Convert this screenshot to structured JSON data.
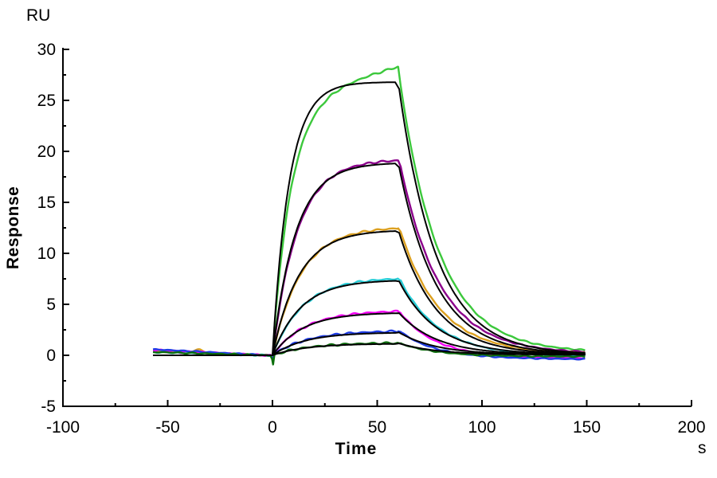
{
  "chart_data": {
    "type": "line",
    "title": "",
    "description": "SPR sensorgram: seven concentration curves (colored raw data) with black kinetic fit overlays",
    "x_axis": {
      "label": "Time",
      "unit": "s",
      "range": [
        -100,
        200
      ],
      "major_ticks": [
        -100,
        -50,
        0,
        50,
        100,
        150,
        200
      ],
      "minor_ticks": [
        -75,
        -25,
        25,
        75,
        125,
        175
      ]
    },
    "y_axis": {
      "label": "Response",
      "unit": "RU",
      "range": [
        -5,
        30
      ],
      "major_ticks": [
        -5,
        0,
        5,
        10,
        15,
        20,
        25,
        30
      ],
      "minor_ticks": [
        -2.5,
        2.5,
        7.5,
        12.5,
        17.5,
        22.5,
        27.5
      ]
    },
    "grid": false,
    "legend": false,
    "fit_color": "#000000",
    "phases": {
      "baseline_start_s": -57,
      "injection_start_s": 0,
      "injection_end_s": 60,
      "dissociation_end_s": 150
    },
    "series": [
      {
        "name": "curve-green",
        "color": "#3CC83C",
        "req_fit": 26.8,
        "peak_data": 28.3,
        "tau_assoc_s": 8,
        "tau_assoc_data_s": 8.8,
        "drift_ru_per_s": 0.057,
        "dissoc_start_data": 26.4,
        "tau_dissoc_s": 18,
        "tau_dissoc_data_s": 19,
        "end_offset_ru": 0.3,
        "baseline_start_ru": 0.4,
        "baseline_bump_ru": 0.15,
        "dip_ru": -0.7
      },
      {
        "name": "curve-purple",
        "color": "#8B008B",
        "req_fit": 18.9,
        "peak_data": 19.1,
        "tau_assoc_s": 11,
        "tau_assoc_data_s": 11.8,
        "drift_ru_per_s": 0,
        "dissoc_start_data": 18.5,
        "tau_dissoc_s": 18,
        "tau_dissoc_data_s": 19,
        "end_offset_ru": 0.2,
        "baseline_start_ru": 0.35,
        "baseline_bump_ru": 0,
        "dip_ru": -0.6
      },
      {
        "name": "curve-orange",
        "color": "#DCA020",
        "req_fit": 12.3,
        "peak_data": 12.45,
        "tau_assoc_s": 12.5,
        "tau_assoc_data_s": 13.4,
        "drift_ru_per_s": 0,
        "dissoc_start_data": 12.1,
        "tau_dissoc_s": 18,
        "tau_dissoc_data_s": 19,
        "end_offset_ru": 0.15,
        "baseline_start_ru": 0.45,
        "baseline_bump_ru": 0.3,
        "dip_ru": -0.6
      },
      {
        "name": "curve-cyan",
        "color": "#28CDD7",
        "req_fit": 7.4,
        "peak_data": 7.5,
        "tau_assoc_s": 13.5,
        "tau_assoc_data_s": 14.4,
        "drift_ru_per_s": 0,
        "dissoc_start_data": 7.3,
        "tau_dissoc_s": 18,
        "tau_dissoc_data_s": 18.5,
        "end_offset_ru": -0.1,
        "baseline_start_ru": 0.3,
        "baseline_bump_ru": 0,
        "dip_ru": -0.55
      },
      {
        "name": "curve-magenta",
        "color": "#F500F5",
        "req_fit": 4.2,
        "peak_data": 4.3,
        "tau_assoc_s": 14.5,
        "tau_assoc_data_s": 15.5,
        "drift_ru_per_s": 0,
        "dissoc_start_data": 4.15,
        "tau_dissoc_s": 18,
        "tau_dissoc_data_s": 16.5,
        "end_offset_ru": -0.35,
        "baseline_start_ru": 0.5,
        "baseline_bump_ru": 0,
        "dip_ru": -0.6
      },
      {
        "name": "curve-blue",
        "color": "#1E3CE6",
        "req_fit": 2.25,
        "peak_data": 2.35,
        "tau_assoc_s": 15.5,
        "tau_assoc_data_s": 16.5,
        "drift_ru_per_s": 0,
        "dissoc_start_data": 2.3,
        "tau_dissoc_s": 18,
        "tau_dissoc_data_s": 16,
        "end_offset_ru": -0.45,
        "baseline_start_ru": 0.55,
        "baseline_bump_ru": 0,
        "dip_ru": -0.5
      },
      {
        "name": "curve-darkgreen",
        "color": "#0B6E0B",
        "req_fit": 1.15,
        "peak_data": 1.2,
        "tau_assoc_s": 16,
        "tau_assoc_data_s": 17,
        "drift_ru_per_s": 0,
        "dissoc_start_data": 1.15,
        "tau_dissoc_s": 18,
        "tau_dissoc_data_s": 17,
        "end_offset_ru": -0.15,
        "baseline_start_ru": 0.3,
        "baseline_bump_ru": 0,
        "dip_ru": -0.9
      }
    ]
  }
}
